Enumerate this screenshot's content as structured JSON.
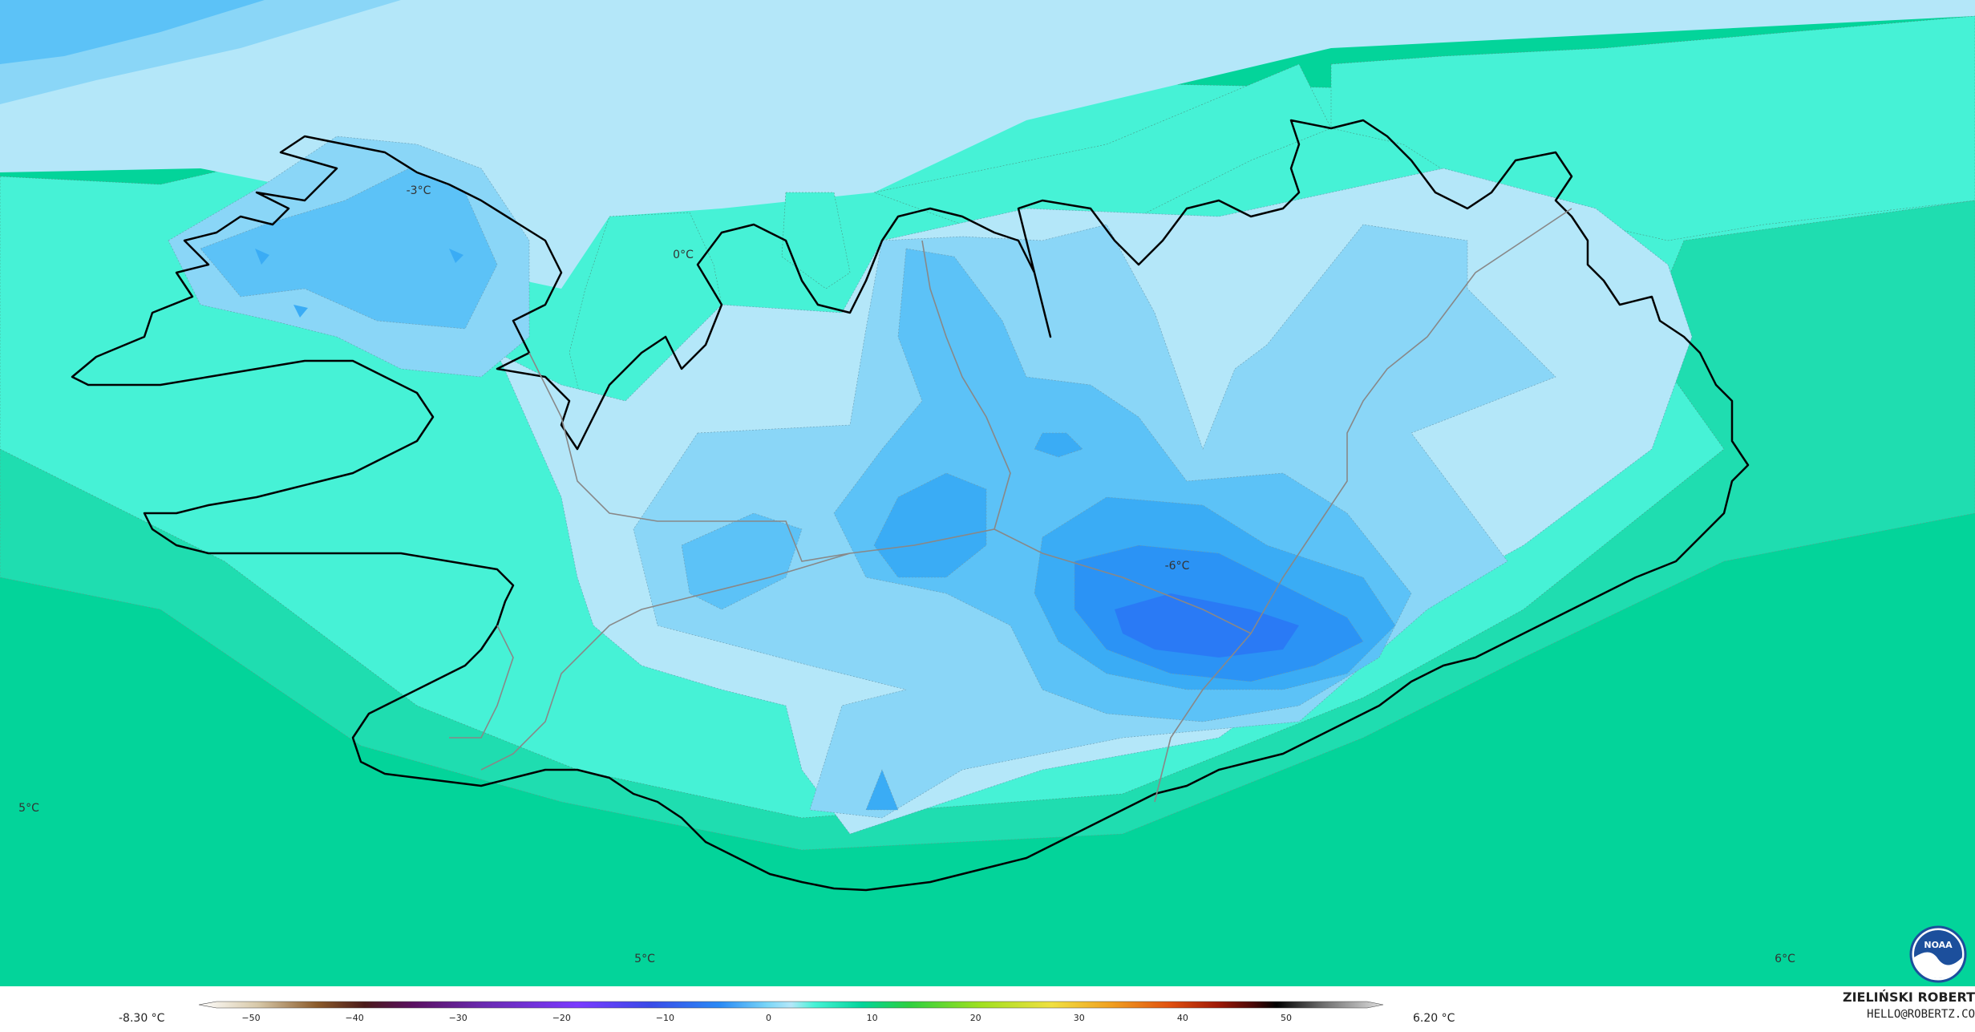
{
  "map": {
    "contour_labels": [
      {
        "text": "-3°C",
        "pos": [
          522,
          236
        ]
      },
      {
        "text": "0°C",
        "pos": [
          852,
          316
        ]
      },
      {
        "text": "-6°C",
        "pos": [
          1468,
          704
        ]
      },
      {
        "text": "5°C",
        "pos": [
          36,
          1006
        ]
      },
      {
        "text": "5°C",
        "pos": [
          804,
          1194
        ]
      },
      {
        "text": "6°C",
        "pos": [
          2226,
          1194
        ]
      }
    ],
    "colors": {
      "ocean_warm": "#03d49a",
      "ocean_mid": "#2ee3b8",
      "ocean_cool": "#46f2d6",
      "north_sea": "#b4e7f9",
      "cold1": "#8ad6f7",
      "cold2": "#5cc2f7",
      "cold3": "#3aacf5",
      "cold4": "#2b93f5",
      "cold5": "#2a7af5"
    }
  },
  "legend": {
    "min_label": "-8.30 °C",
    "max_label": "6.20 °C",
    "ticks": [
      "−50",
      "−40",
      "−30",
      "−20",
      "−10",
      "0",
      "10",
      "20",
      "30",
      "40",
      "50"
    ]
  },
  "credit": {
    "name": "ZIELIŃSKI ROBERT",
    "email": "HELLO@ROBERTZ.CO"
  },
  "logo": {
    "text": "NOAA"
  }
}
